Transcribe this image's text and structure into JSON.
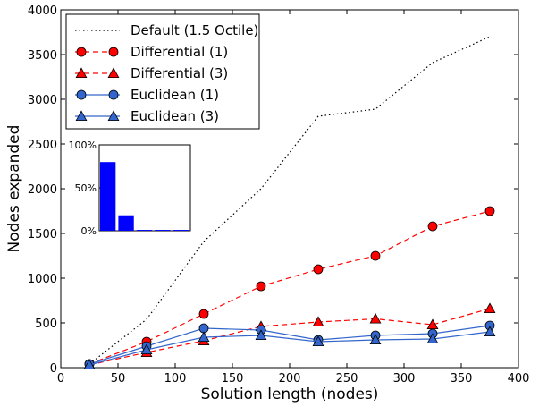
{
  "chart_data": [
    {
      "type": "line",
      "xlabel": "Solution length (nodes)",
      "ylabel": "Nodes expanded",
      "xlim": [
        0,
        400
      ],
      "ylim": [
        0,
        4000
      ],
      "xticks": [
        0,
        50,
        100,
        150,
        200,
        250,
        300,
        350,
        400
      ],
      "yticks": [
        0,
        500,
        1000,
        1500,
        2000,
        2500,
        3000,
        3500,
        4000
      ],
      "grid": false,
      "legend_position": "top-left",
      "x": [
        25,
        75,
        125,
        175,
        225,
        275,
        325,
        375
      ],
      "series": [
        {
          "name": "Default (1.5 Octile)",
          "values": [
            40,
            540,
            1410,
            2000,
            2810,
            2890,
            3410,
            3700
          ],
          "color": "#000000",
          "line": "dotted",
          "marker": "none"
        },
        {
          "name": "Differential (1)",
          "values": [
            40,
            290,
            600,
            910,
            1100,
            1250,
            1580,
            1750
          ],
          "color": "#ff0000",
          "line": "dashed",
          "marker": "circle"
        },
        {
          "name": "Differential (3)",
          "values": [
            30,
            170,
            300,
            460,
            510,
            545,
            480,
            660
          ],
          "color": "#ff0000",
          "line": "dashed",
          "marker": "triangle"
        },
        {
          "name": "Euclidean (1)",
          "values": [
            40,
            240,
            440,
            420,
            310,
            360,
            380,
            470
          ],
          "color": "#3366cc",
          "line": "solid",
          "marker": "circle"
        },
        {
          "name": "Euclidean (3)",
          "values": [
            30,
            200,
            340,
            360,
            290,
            310,
            320,
            400
          ],
          "color": "#3366cc",
          "line": "solid",
          "marker": "triangle"
        }
      ]
    },
    {
      "type": "bar",
      "position": "inset",
      "yticks": [
        "0%",
        "50%",
        "100%"
      ],
      "ylim": [
        0,
        100
      ],
      "values": [
        80,
        18,
        1,
        1,
        1
      ],
      "color": "#0000ff"
    }
  ]
}
